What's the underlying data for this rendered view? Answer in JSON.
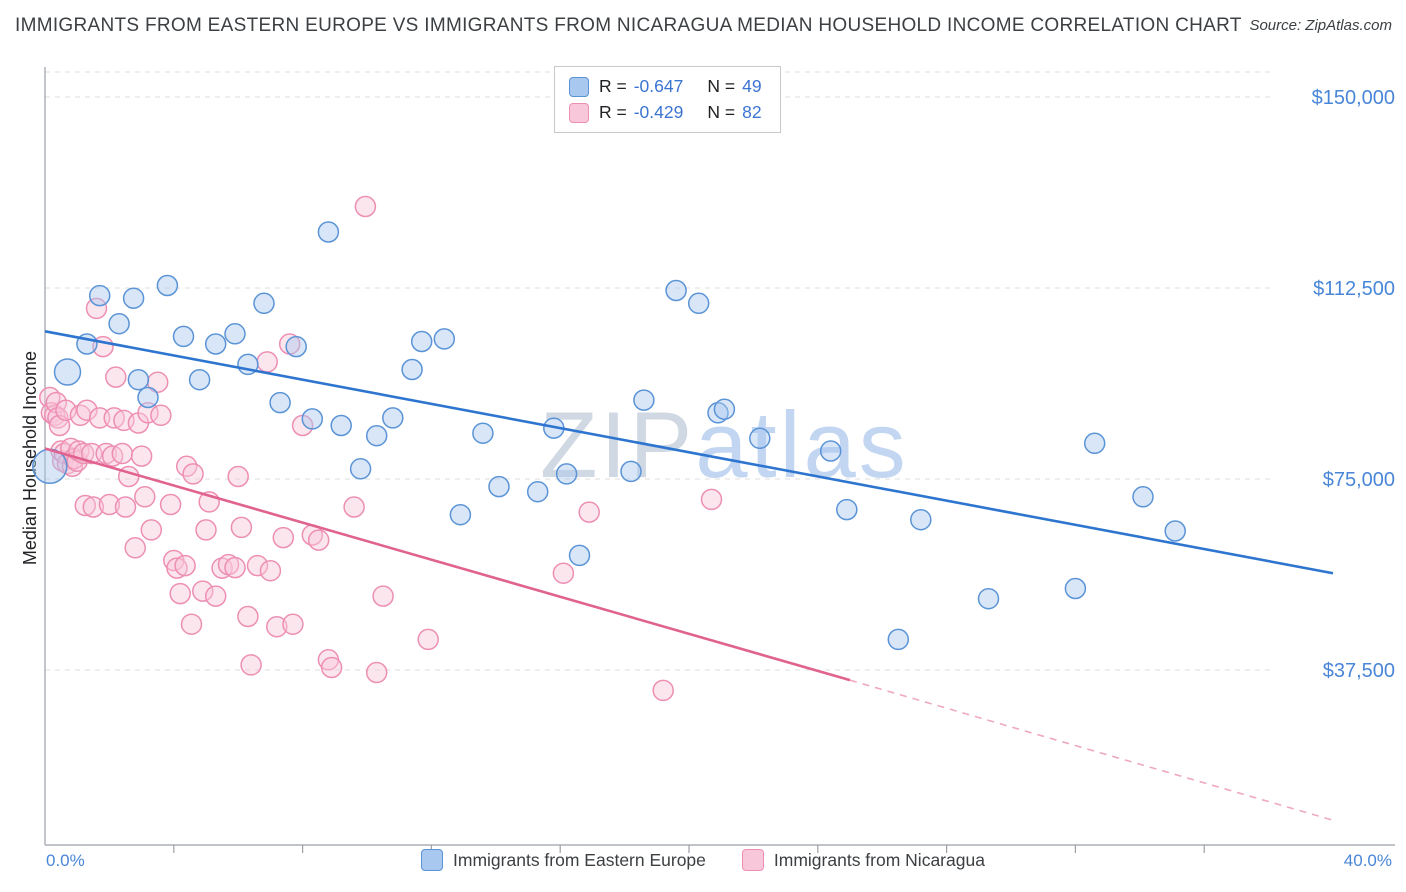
{
  "header": {
    "title": "IMMIGRANTS FROM EASTERN EUROPE VS IMMIGRANTS FROM NICARAGUA MEDIAN HOUSEHOLD INCOME CORRELATION CHART",
    "source": "Source: ZipAtlas.com"
  },
  "watermark": {
    "part1": "ZIP",
    "part2": "atlas"
  },
  "legend_box": {
    "rows": [
      {
        "r_label": "R =",
        "r_value": "-0.647",
        "n_label": "N =",
        "n_value": "49"
      },
      {
        "r_label": "R =",
        "r_value": "-0.429",
        "n_label": "N =",
        "n_value": "82"
      }
    ]
  },
  "bottom_legend": {
    "items": [
      {
        "label": "Immigrants from Eastern Europe"
      },
      {
        "label": "Immigrants from Nicaragua"
      }
    ]
  },
  "chart_data": {
    "type": "scatter",
    "title": "Immigrants from Eastern Europe vs Immigrants from Nicaragua Median Household Income",
    "ylabel": "Median Household Income",
    "xlim": [
      0,
      40
    ],
    "ylim": [
      0,
      155000
    ],
    "grid": true,
    "x_tick_step": 4,
    "x_tick_labels": {
      "left": "0.0%",
      "right": "40.0%"
    },
    "y_ticks": [
      {
        "value": 150000,
        "label": "$150,000"
      },
      {
        "value": 112500,
        "label": "$112,500"
      },
      {
        "value": 75000,
        "label": "$75,000"
      },
      {
        "value": 37500,
        "label": "$37,500"
      }
    ],
    "series": [
      {
        "name": "Immigrants from Eastern Europe",
        "r": -0.647,
        "n": 49,
        "point_fill": "#A8C8F0",
        "point_stroke": "#5B94D6",
        "line_color": "#2E75D0",
        "trend": {
          "x1": 0,
          "y1": 104000,
          "x2": 40,
          "y2": 56500
        },
        "points": [
          [
            0.15,
            77500,
            17
          ],
          [
            0.7,
            96000,
            13
          ],
          [
            1.3,
            101500
          ],
          [
            1.7,
            111000
          ],
          [
            2.3,
            105500
          ],
          [
            2.75,
            110500
          ],
          [
            2.9,
            94500
          ],
          [
            3.2,
            91000
          ],
          [
            3.8,
            113000
          ],
          [
            4.3,
            103000
          ],
          [
            4.8,
            94500
          ],
          [
            5.3,
            101500
          ],
          [
            5.9,
            103500
          ],
          [
            6.3,
            97500
          ],
          [
            6.8,
            109500
          ],
          [
            7.3,
            90000
          ],
          [
            7.8,
            101000
          ],
          [
            8.3,
            86800
          ],
          [
            8.8,
            123500
          ],
          [
            9.2,
            85500
          ],
          [
            9.8,
            77000
          ],
          [
            10.3,
            83500
          ],
          [
            10.8,
            87000
          ],
          [
            11.4,
            96500
          ],
          [
            11.7,
            102000
          ],
          [
            12.4,
            102500
          ],
          [
            12.9,
            68000
          ],
          [
            13.6,
            84000
          ],
          [
            14.1,
            73500
          ],
          [
            15.3,
            72500
          ],
          [
            15.8,
            85000
          ],
          [
            16.2,
            76000
          ],
          [
            16.6,
            60000
          ],
          [
            18.2,
            76500
          ],
          [
            18.6,
            90500
          ],
          [
            19.6,
            112000
          ],
          [
            20.3,
            109500
          ],
          [
            20.9,
            88000
          ],
          [
            21.1,
            88700
          ],
          [
            22.2,
            83000
          ],
          [
            24.4,
            80500
          ],
          [
            24.9,
            69000
          ],
          [
            26.5,
            43500
          ],
          [
            27.2,
            67000
          ],
          [
            29.3,
            51500
          ],
          [
            32.0,
            53500
          ],
          [
            32.6,
            82000
          ],
          [
            34.1,
            71500
          ],
          [
            35.1,
            64800
          ]
        ]
      },
      {
        "name": "Immigrants from Nicaragua",
        "r": -0.429,
        "n": 82,
        "point_fill": "#F8C8DA",
        "point_stroke": "#ED8FB3",
        "line_color": "#E0628E",
        "trend": {
          "x1": 0,
          "y1": 81000,
          "x2": 25,
          "y2": 35500
        },
        "trend_dashed": {
          "x1": 25,
          "y1": 35500,
          "x2": 40,
          "y2": 8000
        },
        "points": [
          [
            0.15,
            91000
          ],
          [
            0.2,
            88000
          ],
          [
            0.3,
            87500
          ],
          [
            0.35,
            90000
          ],
          [
            0.4,
            87000
          ],
          [
            0.45,
            85500
          ],
          [
            0.5,
            80500
          ],
          [
            0.55,
            78500
          ],
          [
            0.6,
            80000
          ],
          [
            0.65,
            88500
          ],
          [
            0.7,
            78000
          ],
          [
            0.8,
            81000
          ],
          [
            0.85,
            77500
          ],
          [
            0.9,
            79000
          ],
          [
            1.0,
            78500
          ],
          [
            1.05,
            80500
          ],
          [
            1.1,
            87500
          ],
          [
            1.2,
            80000
          ],
          [
            1.25,
            69800
          ],
          [
            1.3,
            88500
          ],
          [
            1.45,
            80000
          ],
          [
            1.5,
            69500
          ],
          [
            1.6,
            108500
          ],
          [
            1.7,
            87000
          ],
          [
            1.8,
            101000
          ],
          [
            1.9,
            80000
          ],
          [
            2.0,
            70000
          ],
          [
            2.1,
            79500
          ],
          [
            2.15,
            87000
          ],
          [
            2.2,
            95000
          ],
          [
            2.4,
            80000
          ],
          [
            2.45,
            86500
          ],
          [
            2.5,
            69500
          ],
          [
            2.6,
            75500
          ],
          [
            2.8,
            61500
          ],
          [
            2.9,
            86000
          ],
          [
            3.0,
            79500
          ],
          [
            3.1,
            71500
          ],
          [
            3.2,
            88000
          ],
          [
            3.3,
            65000
          ],
          [
            3.5,
            94000
          ],
          [
            3.6,
            87500
          ],
          [
            3.9,
            70000
          ],
          [
            4.0,
            59000
          ],
          [
            4.1,
            57500
          ],
          [
            4.2,
            52500
          ],
          [
            4.35,
            58000
          ],
          [
            4.4,
            77500
          ],
          [
            4.55,
            46500
          ],
          [
            4.6,
            76000
          ],
          [
            4.9,
            53000
          ],
          [
            5.0,
            65000
          ],
          [
            5.1,
            70500
          ],
          [
            5.3,
            52000
          ],
          [
            5.5,
            57500
          ],
          [
            5.7,
            58200
          ],
          [
            5.9,
            57600
          ],
          [
            6.0,
            75500
          ],
          [
            6.1,
            65500
          ],
          [
            6.3,
            48000
          ],
          [
            6.4,
            38500
          ],
          [
            6.6,
            58000
          ],
          [
            6.9,
            98000
          ],
          [
            7.0,
            57000
          ],
          [
            7.2,
            46000
          ],
          [
            7.4,
            63500
          ],
          [
            7.6,
            101500
          ],
          [
            7.7,
            46500
          ],
          [
            8.0,
            85500
          ],
          [
            8.3,
            64000
          ],
          [
            8.5,
            63000
          ],
          [
            8.8,
            39500
          ],
          [
            8.9,
            38000
          ],
          [
            9.95,
            128500
          ],
          [
            9.6,
            69500
          ],
          [
            10.3,
            37000
          ],
          [
            10.5,
            52000
          ],
          [
            11.9,
            43500
          ],
          [
            16.1,
            56500
          ],
          [
            16.9,
            68500
          ],
          [
            19.2,
            33500
          ],
          [
            20.7,
            71000
          ]
        ]
      }
    ]
  }
}
